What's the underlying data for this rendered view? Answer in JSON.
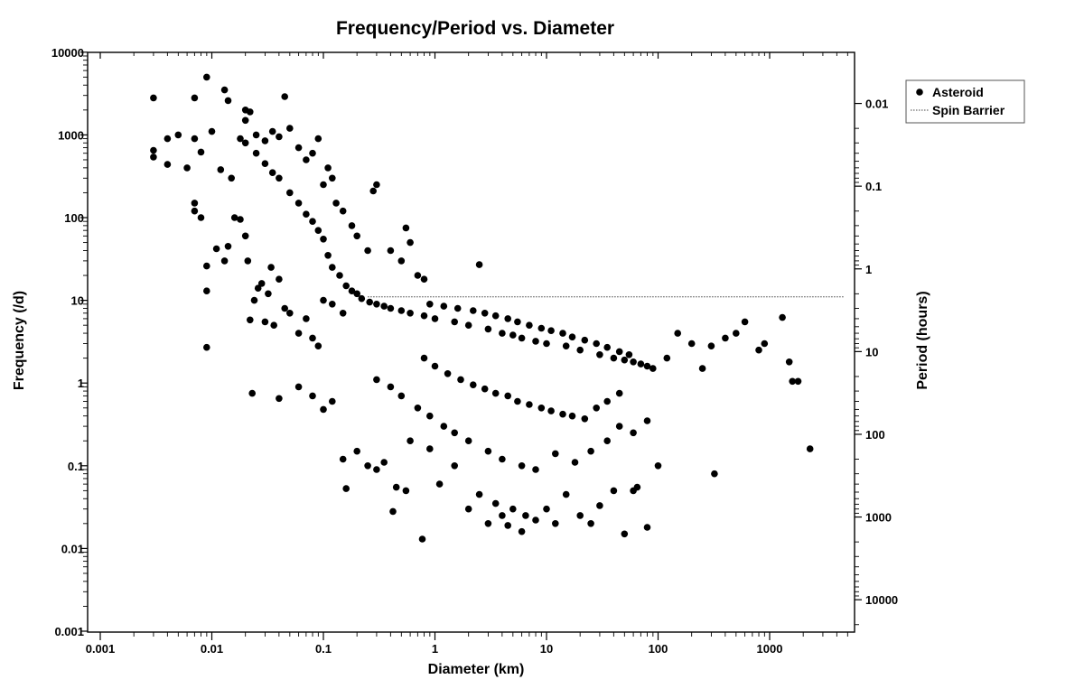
{
  "chart_data": {
    "type": "scatter",
    "title": "Frequency/Period vs. Diameter",
    "xlabel": "Diameter (km)",
    "ylabel": "Frequency (/d)",
    "y2label": "Period (hours)",
    "x_scale": "log",
    "y_scale": "log",
    "xlim": [
      0.001,
      5000
    ],
    "ylim": [
      0.001,
      10000
    ],
    "x_ticks": [
      {
        "value": 0.001,
        "label": "0.001"
      },
      {
        "value": 0.01,
        "label": "0.01"
      },
      {
        "value": 0.1,
        "label": "0.1"
      },
      {
        "value": 1,
        "label": "1"
      },
      {
        "value": 10,
        "label": "10"
      },
      {
        "value": 100,
        "label": "100"
      },
      {
        "value": 1000,
        "label": "1000"
      }
    ],
    "y_ticks": [
      {
        "value": 0.001,
        "label": "0.001"
      },
      {
        "value": 0.01,
        "label": "0.01"
      },
      {
        "value": 0.1,
        "label": "0.1"
      },
      {
        "value": 1,
        "label": "1"
      },
      {
        "value": 10,
        "label": "10"
      },
      {
        "value": 100,
        "label": "100"
      },
      {
        "value": 1000,
        "label": "1000"
      },
      {
        "value": 10000,
        "label": "10000"
      }
    ],
    "y2_ticks": [
      {
        "value": 0.01,
        "label": "0.01"
      },
      {
        "value": 0.1,
        "label": "0.1"
      },
      {
        "value": 1,
        "label": "1"
      },
      {
        "value": 10,
        "label": "10"
      },
      {
        "value": 100,
        "label": "100"
      },
      {
        "value": 1000,
        "label": "1000"
      },
      {
        "value": 10000,
        "label": "10000"
      }
    ],
    "grid": false,
    "legend": {
      "position": "top-right",
      "entries": [
        {
          "label": "Asteroid",
          "style": "marker"
        },
        {
          "label": "Spin Barrier",
          "style": "dotted-line"
        }
      ]
    },
    "series": [
      {
        "name": "Asteroid",
        "points": [
          [
            0.003,
            2800
          ],
          [
            0.009,
            5000
          ],
          [
            0.013,
            3500
          ],
          [
            0.014,
            2600
          ],
          [
            0.007,
            2800
          ],
          [
            0.045,
            2900
          ],
          [
            0.003,
            650
          ],
          [
            0.003,
            540
          ],
          [
            0.004,
            440
          ],
          [
            0.004,
            900
          ],
          [
            0.005,
            1000
          ],
          [
            0.006,
            400
          ],
          [
            0.007,
            900
          ],
          [
            0.008,
            620
          ],
          [
            0.01,
            1100
          ],
          [
            0.012,
            380
          ],
          [
            0.015,
            300
          ],
          [
            0.018,
            900
          ],
          [
            0.02,
            1500
          ],
          [
            0.02,
            2000
          ],
          [
            0.022,
            1900
          ],
          [
            0.025,
            1000
          ],
          [
            0.03,
            850
          ],
          [
            0.035,
            1100
          ],
          [
            0.04,
            950
          ],
          [
            0.05,
            1200
          ],
          [
            0.06,
            700
          ],
          [
            0.07,
            500
          ],
          [
            0.08,
            600
          ],
          [
            0.09,
            900
          ],
          [
            0.1,
            250
          ],
          [
            0.11,
            400
          ],
          [
            0.12,
            300
          ],
          [
            0.13,
            150
          ],
          [
            0.15,
            120
          ],
          [
            0.18,
            80
          ],
          [
            0.2,
            60
          ],
          [
            0.25,
            40
          ],
          [
            0.28,
            210
          ],
          [
            0.3,
            250
          ],
          [
            0.4,
            40
          ],
          [
            0.5,
            30
          ],
          [
            0.55,
            75
          ],
          [
            0.6,
            50
          ],
          [
            0.7,
            20
          ],
          [
            0.8,
            18
          ],
          [
            2.5,
            27
          ],
          [
            0.2,
            12
          ],
          [
            0.007,
            150
          ],
          [
            0.007,
            120
          ],
          [
            0.008,
            100
          ],
          [
            0.009,
            13
          ],
          [
            0.009,
            26
          ],
          [
            0.011,
            42
          ],
          [
            0.013,
            30
          ],
          [
            0.014,
            45
          ],
          [
            0.016,
            100
          ],
          [
            0.018,
            95
          ],
          [
            0.02,
            60
          ],
          [
            0.021,
            30
          ],
          [
            0.022,
            5.8
          ],
          [
            0.024,
            10
          ],
          [
            0.026,
            14
          ],
          [
            0.028,
            16
          ],
          [
            0.03,
            5.5
          ],
          [
            0.032,
            12
          ],
          [
            0.034,
            25
          ],
          [
            0.036,
            5
          ],
          [
            0.04,
            18
          ],
          [
            0.045,
            8
          ],
          [
            0.05,
            7
          ],
          [
            0.06,
            4
          ],
          [
            0.07,
            6
          ],
          [
            0.08,
            3.5
          ],
          [
            0.09,
            2.8
          ],
          [
            0.1,
            10
          ],
          [
            0.12,
            9
          ],
          [
            0.15,
            7
          ],
          [
            0.009,
            2.7
          ],
          [
            0.023,
            0.75
          ],
          [
            0.04,
            0.65
          ],
          [
            0.06,
            0.9
          ],
          [
            0.08,
            0.7
          ],
          [
            0.1,
            0.48
          ],
          [
            0.12,
            0.6
          ],
          [
            0.15,
            0.12
          ],
          [
            0.16,
            0.053
          ],
          [
            0.2,
            0.15
          ],
          [
            0.25,
            0.1
          ],
          [
            0.3,
            0.09
          ],
          [
            0.35,
            0.11
          ],
          [
            0.42,
            0.028
          ],
          [
            0.45,
            0.055
          ],
          [
            0.55,
            0.05
          ],
          [
            0.6,
            0.2
          ],
          [
            0.77,
            0.013
          ],
          [
            0.9,
            0.16
          ],
          [
            1.1,
            0.06
          ],
          [
            1.5,
            0.1
          ],
          [
            2,
            0.03
          ],
          [
            2.5,
            0.045
          ],
          [
            3,
            0.02
          ],
          [
            3.5,
            0.035
          ],
          [
            4,
            0.025
          ],
          [
            4.5,
            0.019
          ],
          [
            5,
            0.03
          ],
          [
            6,
            0.016
          ],
          [
            6.5,
            0.025
          ],
          [
            8,
            0.022
          ],
          [
            10,
            0.03
          ],
          [
            12,
            0.02
          ],
          [
            15,
            0.045
          ],
          [
            20,
            0.025
          ],
          [
            25,
            0.02
          ],
          [
            30,
            0.033
          ],
          [
            40,
            0.05
          ],
          [
            50,
            0.015
          ],
          [
            60,
            0.05
          ],
          [
            80,
            0.018
          ],
          [
            65,
            0.055
          ],
          [
            100,
            0.1
          ],
          [
            320,
            0.08
          ],
          [
            2300,
            0.16
          ],
          [
            1500,
            1.8
          ],
          [
            1600,
            1.05
          ],
          [
            1800,
            1.05
          ],
          [
            1300,
            6.2
          ],
          [
            900,
            3
          ],
          [
            800,
            2.5
          ],
          [
            600,
            5.5
          ],
          [
            500,
            4
          ],
          [
            400,
            3.5
          ],
          [
            300,
            2.8
          ],
          [
            250,
            1.5
          ],
          [
            200,
            3
          ],
          [
            150,
            4
          ],
          [
            120,
            2
          ],
          [
            0.3,
            1.1
          ],
          [
            0.4,
            0.9
          ],
          [
            0.5,
            0.7
          ],
          [
            0.7,
            0.5
          ],
          [
            0.9,
            0.4
          ],
          [
            1.2,
            0.3
          ],
          [
            1.5,
            0.25
          ],
          [
            2,
            0.2
          ],
          [
            3,
            0.15
          ],
          [
            4,
            0.12
          ],
          [
            6,
            0.1
          ],
          [
            8,
            0.09
          ],
          [
            12,
            0.14
          ],
          [
            18,
            0.11
          ],
          [
            25,
            0.15
          ],
          [
            35,
            0.2
          ],
          [
            45,
            0.3
          ],
          [
            60,
            0.25
          ],
          [
            80,
            0.35
          ],
          [
            0.02,
            800
          ],
          [
            0.025,
            600
          ],
          [
            0.03,
            450
          ],
          [
            0.035,
            350
          ],
          [
            0.04,
            300
          ],
          [
            0.05,
            200
          ],
          [
            0.06,
            150
          ],
          [
            0.07,
            110
          ],
          [
            0.08,
            90
          ],
          [
            0.09,
            70
          ],
          [
            0.1,
            55
          ],
          [
            0.11,
            35
          ],
          [
            0.12,
            25
          ],
          [
            0.14,
            20
          ],
          [
            0.16,
            15
          ],
          [
            0.18,
            13
          ],
          [
            0.22,
            10.5
          ],
          [
            0.26,
            9.5
          ],
          [
            0.3,
            9
          ],
          [
            0.35,
            8.5
          ],
          [
            0.4,
            8
          ],
          [
            0.5,
            7.5
          ],
          [
            0.6,
            7
          ],
          [
            0.8,
            6.5
          ],
          [
            1,
            6
          ],
          [
            1.5,
            5.5
          ],
          [
            2,
            5
          ],
          [
            3,
            4.5
          ],
          [
            4,
            4
          ],
          [
            5,
            3.8
          ],
          [
            6,
            3.5
          ],
          [
            8,
            3.2
          ],
          [
            10,
            3
          ],
          [
            15,
            2.8
          ],
          [
            20,
            2.5
          ],
          [
            30,
            2.2
          ],
          [
            40,
            2
          ],
          [
            50,
            1.9
          ],
          [
            60,
            1.8
          ],
          [
            70,
            1.7
          ],
          [
            80,
            1.6
          ],
          [
            90,
            1.5
          ],
          [
            0.9,
            9
          ],
          [
            1.2,
            8.5
          ],
          [
            1.6,
            8
          ],
          [
            2.2,
            7.5
          ],
          [
            2.8,
            7
          ],
          [
            3.5,
            6.5
          ],
          [
            4.5,
            6
          ],
          [
            5.5,
            5.5
          ],
          [
            7,
            5
          ],
          [
            9,
            4.6
          ],
          [
            11,
            4.3
          ],
          [
            14,
            4
          ],
          [
            17,
            3.6
          ],
          [
            22,
            3.3
          ],
          [
            28,
            3
          ],
          [
            35,
            2.7
          ],
          [
            45,
            2.4
          ],
          [
            55,
            2.2
          ],
          [
            0.8,
            2
          ],
          [
            1,
            1.6
          ],
          [
            1.3,
            1.3
          ],
          [
            1.7,
            1.1
          ],
          [
            2.2,
            0.95
          ],
          [
            2.8,
            0.85
          ],
          [
            3.5,
            0.75
          ],
          [
            4.5,
            0.7
          ],
          [
            5.5,
            0.6
          ],
          [
            7,
            0.55
          ],
          [
            9,
            0.5
          ],
          [
            11,
            0.46
          ],
          [
            14,
            0.42
          ],
          [
            17,
            0.4
          ],
          [
            22,
            0.37
          ],
          [
            28,
            0.5
          ],
          [
            35,
            0.6
          ],
          [
            45,
            0.75
          ]
        ]
      },
      {
        "name": "Spin Barrier",
        "points": [
          [
            0.25,
            11
          ],
          [
            4600,
            11
          ]
        ]
      }
    ]
  }
}
